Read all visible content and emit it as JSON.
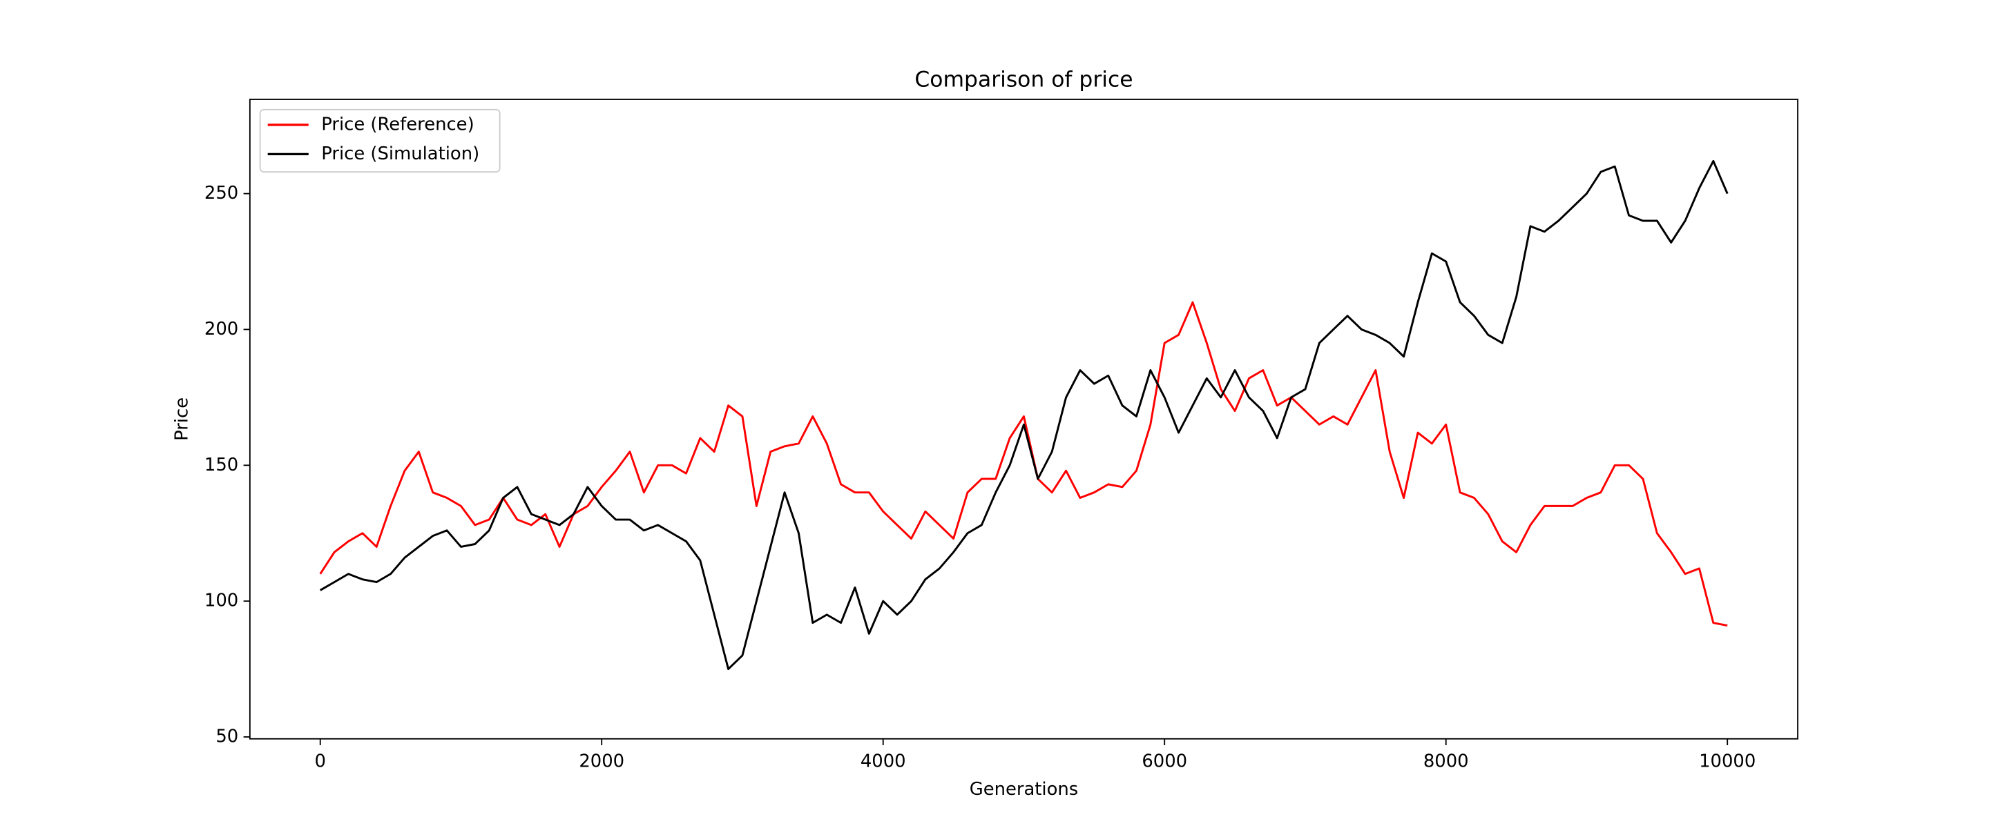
{
  "chart_data": {
    "type": "line",
    "title": "Comparison of price",
    "xlabel": "Generations",
    "ylabel": "Price",
    "x": [
      0,
      100,
      200,
      300,
      400,
      500,
      600,
      700,
      800,
      900,
      1000,
      1100,
      1200,
      1300,
      1400,
      1500,
      1600,
      1700,
      1800,
      1900,
      2000,
      2100,
      2200,
      2300,
      2400,
      2500,
      2600,
      2700,
      2800,
      2900,
      3000,
      3100,
      3200,
      3300,
      3400,
      3500,
      3600,
      3700,
      3800,
      3900,
      4000,
      4100,
      4200,
      4300,
      4400,
      4500,
      4600,
      4700,
      4800,
      4900,
      5000,
      5100,
      5200,
      5300,
      5400,
      5500,
      5600,
      5700,
      5800,
      5900,
      6000,
      6100,
      6200,
      6300,
      6400,
      6500,
      6600,
      6700,
      6800,
      6900,
      7000,
      7100,
      7200,
      7300,
      7400,
      7500,
      7600,
      7700,
      7800,
      7900,
      8000,
      8100,
      8200,
      8300,
      8400,
      8500,
      8600,
      8700,
      8800,
      8900,
      9000,
      9100,
      9200,
      9300,
      9400,
      9500,
      9600,
      9700,
      9800,
      9900,
      10000
    ],
    "series": [
      {
        "name": "Price (Reference)",
        "color": "#ff0000",
        "values": [
          110,
          118,
          122,
          125,
          120,
          135,
          148,
          155,
          140,
          138,
          135,
          128,
          130,
          138,
          130,
          128,
          132,
          120,
          132,
          135,
          142,
          148,
          155,
          140,
          150,
          150,
          147,
          160,
          155,
          172,
          168,
          135,
          155,
          157,
          158,
          168,
          158,
          143,
          140,
          140,
          133,
          128,
          123,
          133,
          128,
          123,
          140,
          145,
          145,
          160,
          168,
          145,
          140,
          148,
          138,
          140,
          143,
          142,
          148,
          165,
          195,
          198,
          210,
          195,
          178,
          170,
          182,
          185,
          172,
          175,
          170,
          165,
          168,
          165,
          175,
          185,
          155,
          138,
          162,
          158,
          165,
          140,
          138,
          132,
          122,
          118,
          128,
          135,
          135,
          135,
          138,
          140,
          150,
          150,
          145,
          125,
          118,
          110,
          112,
          92,
          91
        ]
      },
      {
        "name": "Price (Simulation)",
        "color": "#000000",
        "values": [
          104,
          107,
          110,
          108,
          107,
          110,
          116,
          120,
          124,
          126,
          120,
          121,
          126,
          138,
          142,
          132,
          130,
          128,
          132,
          142,
          135,
          130,
          130,
          126,
          128,
          125,
          122,
          115,
          95,
          75,
          80,
          100,
          120,
          140,
          125,
          92,
          95,
          92,
          105,
          88,
          100,
          95,
          100,
          108,
          112,
          118,
          125,
          128,
          140,
          150,
          165,
          145,
          155,
          175,
          185,
          180,
          183,
          172,
          168,
          185,
          175,
          162,
          172,
          182,
          175,
          185,
          175,
          170,
          160,
          175,
          178,
          195,
          200,
          205,
          200,
          198,
          195,
          190,
          210,
          228,
          225,
          210,
          205,
          198,
          195,
          212,
          238,
          236,
          240,
          245,
          250,
          258,
          260,
          242,
          240,
          240,
          232,
          240,
          252,
          262,
          250
        ]
      }
    ],
    "xlim": [
      -500,
      10500
    ],
    "ylim": [
      49.3,
      284.7
    ],
    "xticks": [
      0,
      2000,
      4000,
      6000,
      8000,
      10000
    ],
    "yticks": [
      50,
      100,
      150,
      200,
      250
    ],
    "legend": "upper left"
  }
}
